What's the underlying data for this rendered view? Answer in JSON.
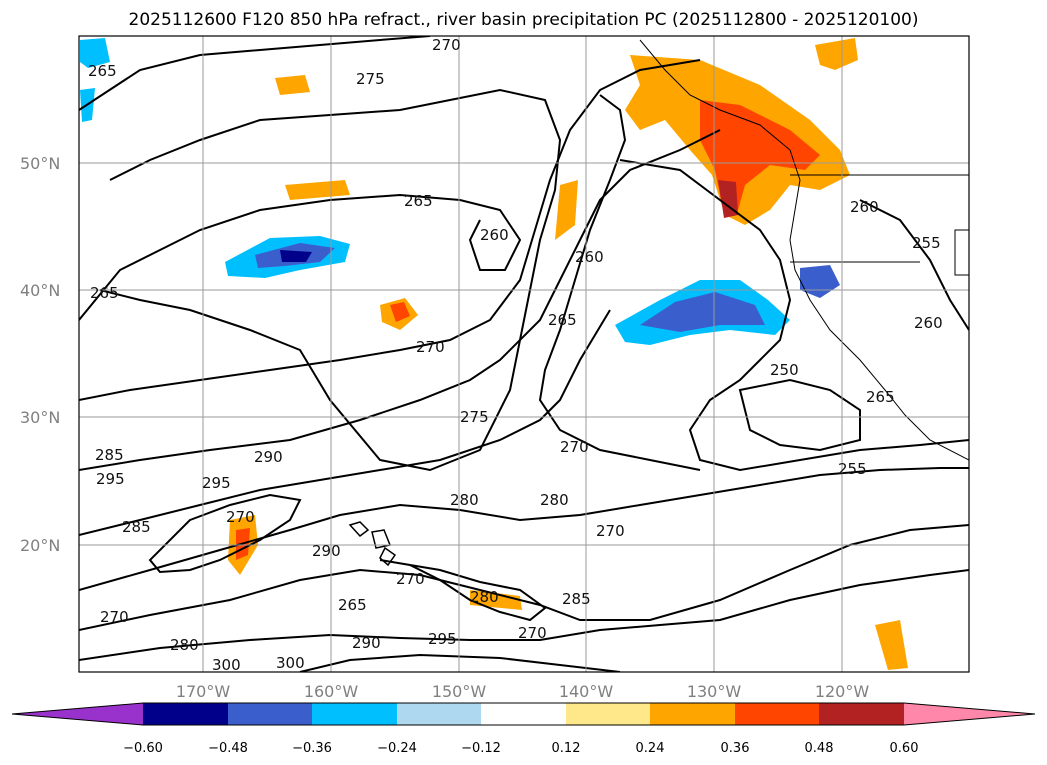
{
  "title": "2025112600 F120 850 hPa refract., river basin precipitation PC (2025112800 - 2025120100)",
  "lat_labels": [
    "50°N",
    "40°N",
    "30°N",
    "20°N"
  ],
  "lon_labels": [
    "170°W",
    "160°W",
    "150°W",
    "140°W",
    "130°W",
    "120°W"
  ],
  "contour_labels": [
    "265",
    "275",
    "270",
    "265",
    "260",
    "260",
    "265",
    "265",
    "270",
    "275",
    "270",
    "260",
    "255",
    "260",
    "250",
    "265",
    "280",
    "280",
    "270",
    "255",
    "285",
    "290",
    "295",
    "295",
    "270",
    "285",
    "270",
    "290",
    "265",
    "270",
    "280",
    "285",
    "270",
    "280",
    "290",
    "295",
    "300",
    "300"
  ],
  "colorbar": {
    "ticks": [
      "−0.60",
      "−0.48",
      "−0.36",
      "−0.24",
      "−0.12",
      "0.12",
      "0.24",
      "0.36",
      "0.48",
      "0.60"
    ],
    "colors": [
      "#9932cc",
      "#00008b",
      "#3a5fcd",
      "#00bfff",
      "#add8f0",
      "#ffffff",
      "#ffe88a",
      "#ffa500",
      "#ff4500",
      "#b22222",
      "#ff88aa"
    ]
  }
}
